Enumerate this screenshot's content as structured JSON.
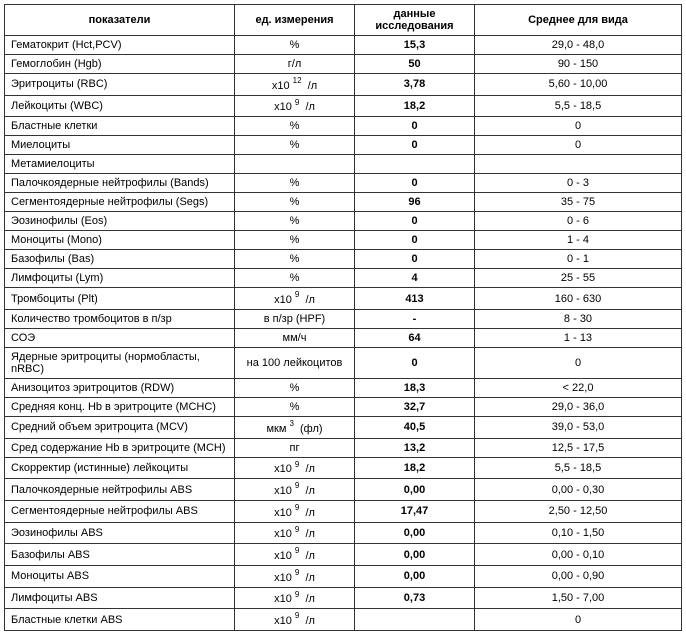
{
  "headers": {
    "name": "показатели",
    "unit": "ед. измерения",
    "data": "данные исследования",
    "ref": "Среднее для вида"
  },
  "rows": [
    {
      "name": "Гематокрит (Hct,PCV)",
      "unit_pre": "%",
      "unit_sup": "",
      "unit_post": "",
      "data": "15,3",
      "ref": "29,0 - 48,0"
    },
    {
      "name": "Гемоглобин (Hgb)",
      "unit_pre": "г/л",
      "unit_sup": "",
      "unit_post": "",
      "data": "50",
      "ref": "90 - 150"
    },
    {
      "name": "Эритроциты (RBC)",
      "unit_pre": "x10 ",
      "unit_sup": "12",
      "unit_post": "  /л",
      "data": "3,78",
      "ref": "5,60 - 10,00"
    },
    {
      "name": "Лейкоциты (WBC)",
      "unit_pre": "x10 ",
      "unit_sup": "9",
      "unit_post": "  /л",
      "data": "18,2",
      "ref": "5,5 - 18,5"
    },
    {
      "name": "Бластные клетки",
      "unit_pre": "%",
      "unit_sup": "",
      "unit_post": "",
      "data": "0",
      "ref": "0"
    },
    {
      "name": "Миелоциты",
      "unit_pre": "%",
      "unit_sup": "",
      "unit_post": "",
      "data": "0",
      "ref": "0"
    },
    {
      "name": "Метамиелоциты",
      "unit_pre": "",
      "unit_sup": "",
      "unit_post": "",
      "data": "",
      "ref": ""
    },
    {
      "name": "Палочкоядерные нейтрофилы (Bands)",
      "unit_pre": "%",
      "unit_sup": "",
      "unit_post": "",
      "data": "0",
      "ref": "0 - 3"
    },
    {
      "name": "Сегментоядерные нейтрофилы (Segs)",
      "unit_pre": "%",
      "unit_sup": "",
      "unit_post": "",
      "data": "96",
      "ref": "35 - 75"
    },
    {
      "name": "Эозинофилы (Eos)",
      "unit_pre": "%",
      "unit_sup": "",
      "unit_post": "",
      "data": "0",
      "ref": "0 - 6"
    },
    {
      "name": "Моноциты (Mono)",
      "unit_pre": "%",
      "unit_sup": "",
      "unit_post": "",
      "data": "0",
      "ref": "1 - 4"
    },
    {
      "name": "Базофилы (Bas)",
      "unit_pre": "%",
      "unit_sup": "",
      "unit_post": "",
      "data": "0",
      "ref": "0 - 1"
    },
    {
      "name": "Лимфоциты (Lym)",
      "unit_pre": "%",
      "unit_sup": "",
      "unit_post": "",
      "data": "4",
      "ref": "25 - 55"
    },
    {
      "name": "Тромбоциты (Plt)",
      "unit_pre": "x10 ",
      "unit_sup": "9",
      "unit_post": "  /л",
      "data": "413",
      "ref": "160 - 630"
    },
    {
      "name": "Количество тромбоцитов в п/зр",
      "unit_pre": "в п/зр (HPF)",
      "unit_sup": "",
      "unit_post": "",
      "data": "-",
      "ref": "8 - 30"
    },
    {
      "name": "СОЭ",
      "unit_pre": "мм/ч",
      "unit_sup": "",
      "unit_post": "",
      "data": "64",
      "ref": "1 - 13"
    },
    {
      "name": "Ядерные эритроциты (нормобласты, nRBC)",
      "unit_pre": "на 100 лейкоцитов",
      "unit_sup": "",
      "unit_post": "",
      "data": "0",
      "ref": "0"
    },
    {
      "name": "Анизоцитоз эритроцитов (RDW)",
      "unit_pre": "%",
      "unit_sup": "",
      "unit_post": "",
      "data": "18,3",
      "ref": "< 22,0"
    },
    {
      "name": "Средняя конц. Hb в эритроците (MCHC)",
      "unit_pre": "%",
      "unit_sup": "",
      "unit_post": "",
      "data": "32,7",
      "ref": "29,0 - 36,0"
    },
    {
      "name": "Средний объем эритроцита (MCV)",
      "unit_pre": "мкм ",
      "unit_sup": "3",
      "unit_post": "  (фл)",
      "data": "40,5",
      "ref": "39,0 - 53,0"
    },
    {
      "name": "Сред содержание Hb в эритроците (MCH)",
      "unit_pre": "пг",
      "unit_sup": "",
      "unit_post": "",
      "data": "13,2",
      "ref": "12,5 - 17,5"
    },
    {
      "name": "Скорректир (истинные) лейкоциты",
      "unit_pre": "x10 ",
      "unit_sup": "9",
      "unit_post": "  /л",
      "data": "18,2",
      "ref": "5,5 - 18,5"
    },
    {
      "name": "Палочкоядерные нейтрофилы ABS",
      "unit_pre": "x10 ",
      "unit_sup": "9",
      "unit_post": "  /л",
      "data": "0,00",
      "ref": "0,00 - 0,30"
    },
    {
      "name": "Сегментоядерные нейтрофилы ABS",
      "unit_pre": "x10 ",
      "unit_sup": "9",
      "unit_post": "  /л",
      "data": "17,47",
      "ref": "2,50 - 12,50"
    },
    {
      "name": "Эозинофилы ABS",
      "unit_pre": "x10 ",
      "unit_sup": "9",
      "unit_post": "  /л",
      "data": "0,00",
      "ref": "0,10 - 1,50"
    },
    {
      "name": "Базофилы ABS",
      "unit_pre": "x10 ",
      "unit_sup": "9",
      "unit_post": "  /л",
      "data": "0,00",
      "ref": "0,00 - 0,10"
    },
    {
      "name": "Моноциты ABS",
      "unit_pre": "x10 ",
      "unit_sup": "9",
      "unit_post": "  /л",
      "data": "0,00",
      "ref": "0,00 - 0,90"
    },
    {
      "name": "Лимфоциты ABS",
      "unit_pre": "x10 ",
      "unit_sup": "9",
      "unit_post": "  /л",
      "data": "0,73",
      "ref": "1,50 - 7,00"
    },
    {
      "name": "Бластные клетки ABS",
      "unit_pre": "x10 ",
      "unit_sup": "9",
      "unit_post": "  /л",
      "data": "",
      "ref": "0"
    }
  ]
}
